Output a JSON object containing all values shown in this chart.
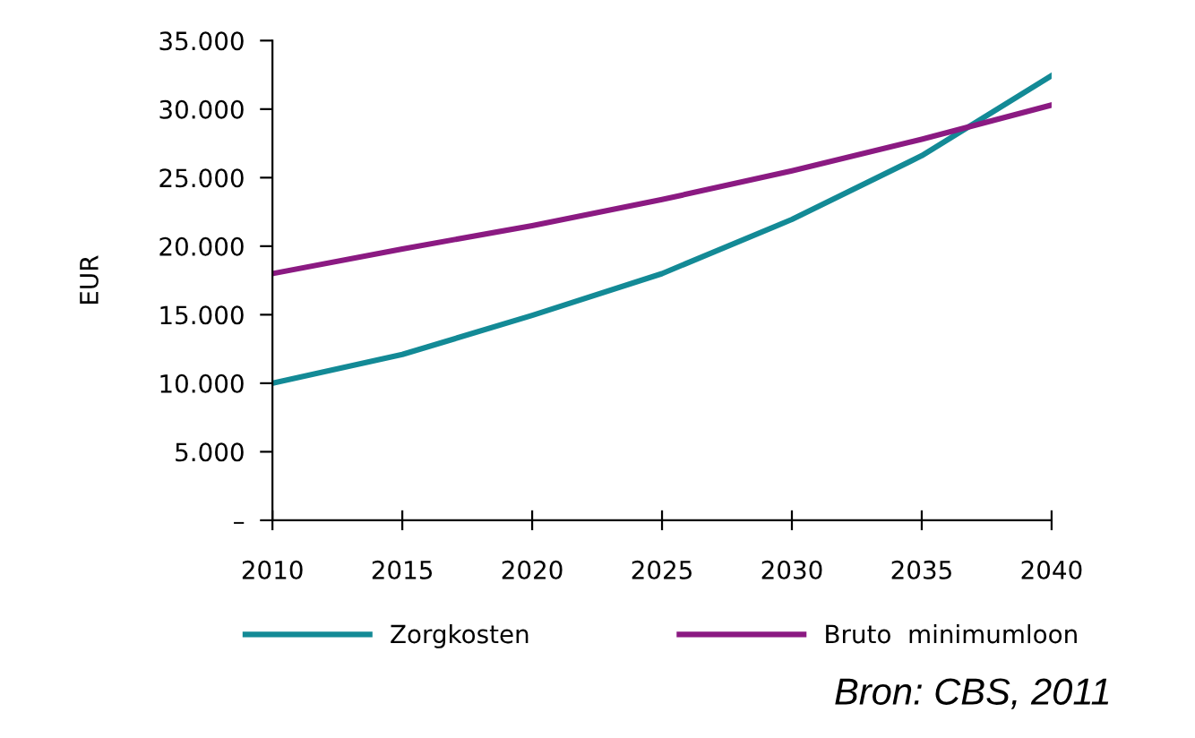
{
  "chart_data": {
    "type": "line",
    "ylabel": "EUR",
    "x": [
      2010,
      2015,
      2020,
      2025,
      2030,
      2035,
      2040
    ],
    "series": [
      {
        "name": "Zorgkosten",
        "color": "#138a96",
        "values": [
          10000,
          12100,
          14950,
          18000,
          21950,
          26600,
          32450
        ]
      },
      {
        "name": "Bruto  minimumloon",
        "color": "#8b1a82",
        "values": [
          18000,
          19800,
          21500,
          23400,
          25500,
          27800,
          30300
        ]
      }
    ],
    "xlim": [
      2010,
      2040
    ],
    "xticks": [
      2010,
      2015,
      2020,
      2025,
      2030,
      2035,
      2040
    ],
    "ylim": [
      0,
      35000
    ],
    "yticks": [
      {
        "value": 0,
        "label": "–"
      },
      {
        "value": 5000,
        "label": "5.000"
      },
      {
        "value": 10000,
        "label": "10.000"
      },
      {
        "value": 15000,
        "label": "15.000"
      },
      {
        "value": 20000,
        "label": "20.000"
      },
      {
        "value": 25000,
        "label": "25.000"
      },
      {
        "value": 30000,
        "label": "30.000"
      },
      {
        "value": 35000,
        "label": "35.000"
      }
    ],
    "grid": false,
    "legend": "bottom",
    "marker": "none",
    "line_style": "solid",
    "annotations": [
      "Bron: CBS, 2011"
    ]
  }
}
